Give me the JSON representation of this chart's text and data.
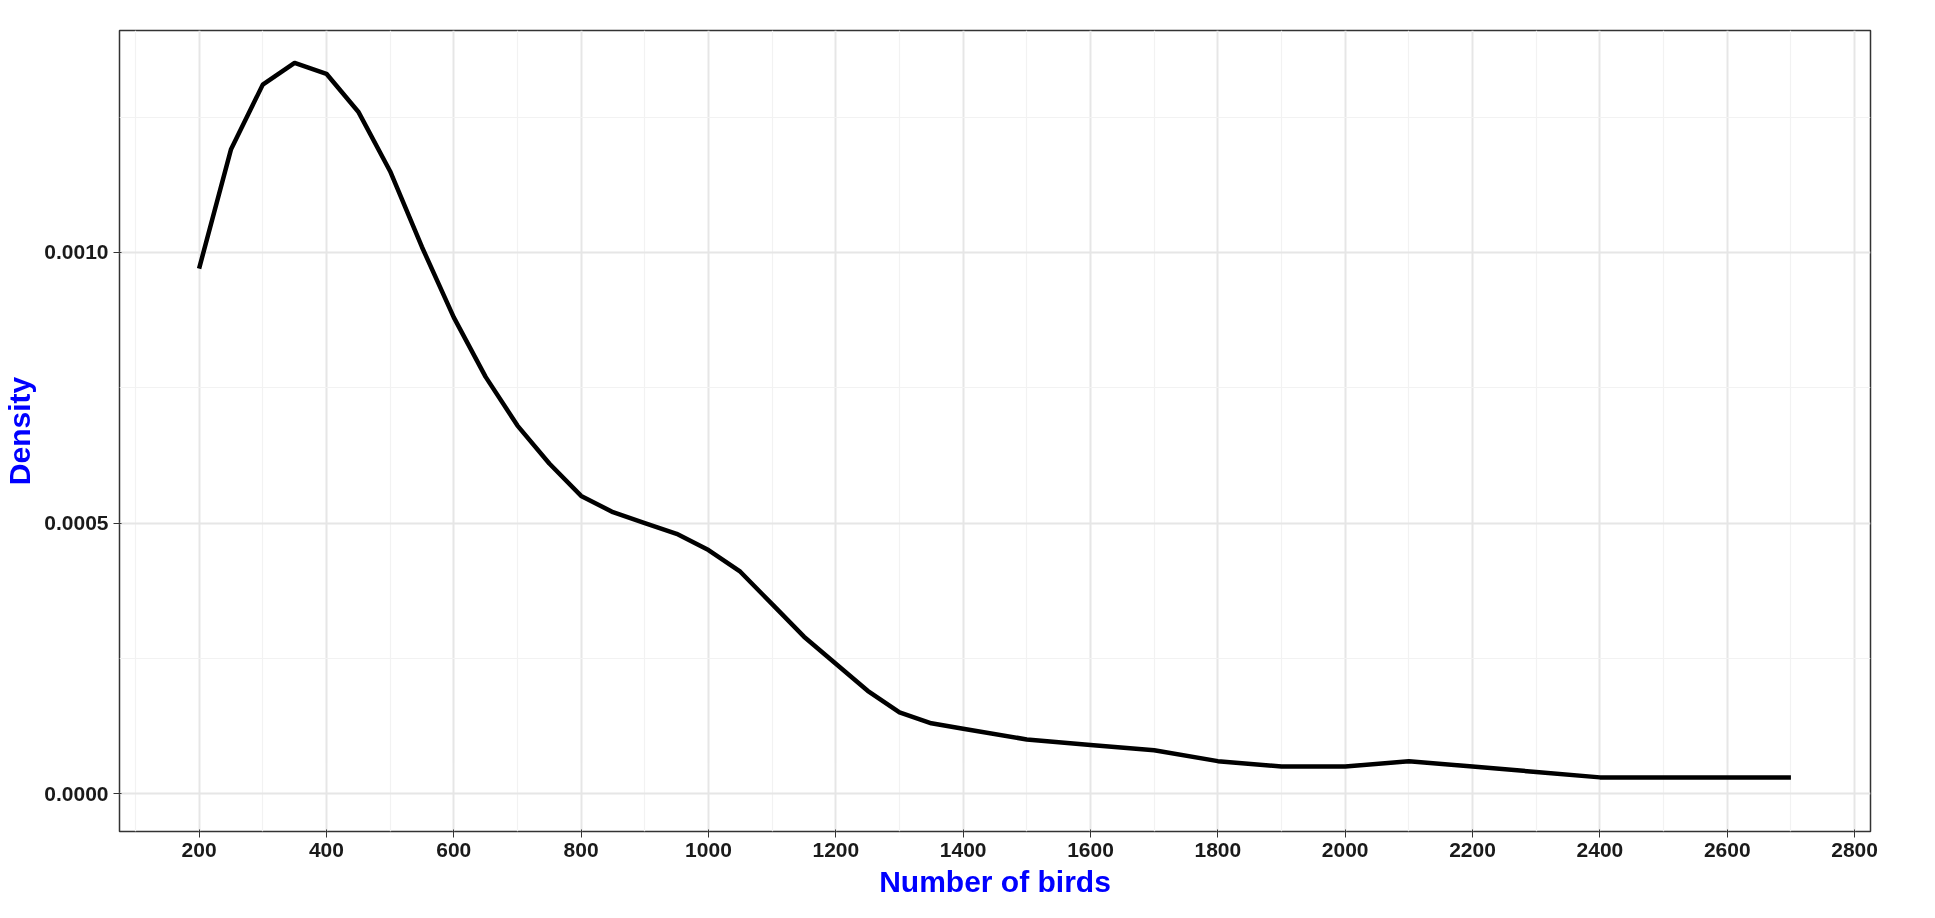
{
  "chart_data": {
    "type": "line",
    "xlabel": "Number of birds",
    "ylabel": "Density",
    "x": [
      200,
      250,
      300,
      350,
      400,
      450,
      500,
      550,
      600,
      650,
      700,
      750,
      800,
      850,
      900,
      950,
      1000,
      1050,
      1100,
      1150,
      1200,
      1250,
      1300,
      1350,
      1400,
      1500,
      1600,
      1700,
      1800,
      1900,
      2000,
      2100,
      2200,
      2300,
      2400,
      2500,
      2600,
      2700
    ],
    "series": [
      {
        "color": "#000000",
        "values": [
          0.00097,
          0.00119,
          0.00131,
          0.00135,
          0.00133,
          0.00126,
          0.00115,
          0.00101,
          0.00088,
          0.00077,
          0.00068,
          0.00061,
          0.00055,
          0.00052,
          0.0005,
          0.00048,
          0.00045,
          0.00041,
          0.00035,
          0.00029,
          0.00024,
          0.00019,
          0.00015,
          0.00013,
          0.00012,
          0.0001,
          9e-05,
          8e-05,
          6e-05,
          5e-05,
          5e-05,
          6e-05,
          5e-05,
          4e-05,
          3e-05,
          3e-05,
          3e-05,
          3e-05
        ]
      }
    ],
    "xlim": [
      75,
      2825
    ],
    "ylim": [
      -7e-05,
      0.00141
    ],
    "xticks": [
      200,
      400,
      600,
      800,
      1000,
      1200,
      1400,
      1600,
      1800,
      2000,
      2200,
      2400,
      2600,
      2800
    ],
    "yticks": [
      {
        "value": 0,
        "label": "0.0000"
      },
      {
        "value": 0.0005,
        "label": "0.0005"
      },
      {
        "value": 0.001,
        "label": "0.0010"
      }
    ],
    "grid": true,
    "marker": "none",
    "line_style": "solid"
  }
}
